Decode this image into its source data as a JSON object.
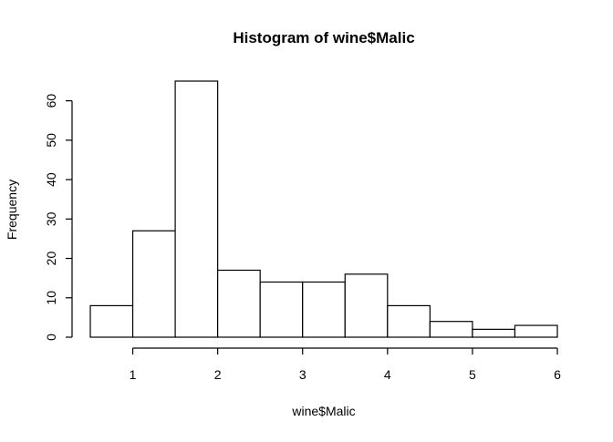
{
  "chart_data": {
    "type": "bar",
    "title": "Histogram of wine$Malic",
    "xlabel": "wine$Malic",
    "ylabel": "Frequency",
    "bins": [
      {
        "start": 0.5,
        "end": 1.0,
        "count": 8
      },
      {
        "start": 1.0,
        "end": 1.5,
        "count": 27
      },
      {
        "start": 1.5,
        "end": 2.0,
        "count": 65
      },
      {
        "start": 2.0,
        "end": 2.5,
        "count": 17
      },
      {
        "start": 2.5,
        "end": 3.0,
        "count": 14
      },
      {
        "start": 3.0,
        "end": 3.5,
        "count": 14
      },
      {
        "start": 3.5,
        "end": 4.0,
        "count": 16
      },
      {
        "start": 4.0,
        "end": 4.5,
        "count": 8
      },
      {
        "start": 4.5,
        "end": 5.0,
        "count": 4
      },
      {
        "start": 5.0,
        "end": 5.5,
        "count": 2
      },
      {
        "start": 5.5,
        "end": 6.0,
        "count": 3
      }
    ],
    "x_ticks": [
      1,
      2,
      3,
      4,
      5,
      6
    ],
    "y_ticks": [
      0,
      10,
      20,
      30,
      40,
      50,
      60
    ],
    "xlim": [
      0.5,
      6.0
    ],
    "ylim": [
      0,
      65
    ],
    "grid": false,
    "legend": "none"
  }
}
